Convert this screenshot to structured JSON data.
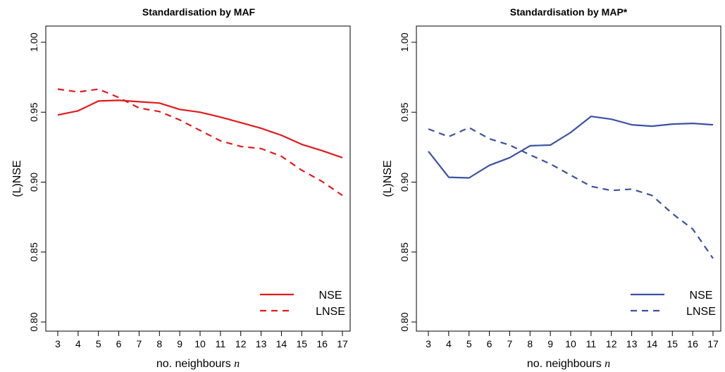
{
  "chart_data": [
    {
      "type": "line",
      "title": "Standardisation by MAF",
      "xlabel": "no. neighbours",
      "xlabel_var": "n",
      "ylabel": "(L)NSE",
      "x": [
        3,
        4,
        5,
        6,
        7,
        8,
        9,
        10,
        11,
        12,
        13,
        14,
        15,
        16,
        17
      ],
      "xlim": [
        3,
        17
      ],
      "ylim": [
        0.8,
        1.0
      ],
      "yticks": [
        "0.80",
        "0.85",
        "0.90",
        "0.95",
        "1.00"
      ],
      "grid": false,
      "legend_position": "bottom-right",
      "series": [
        {
          "name": "NSE",
          "style": "solid",
          "color": "#e31a1c",
          "values": [
            0.948,
            0.951,
            0.958,
            0.9585,
            0.9575,
            0.9565,
            0.952,
            0.95,
            0.9465,
            0.9425,
            0.9385,
            0.9335,
            0.927,
            0.9225,
            0.9175
          ]
        },
        {
          "name": "LNSE",
          "style": "dashed",
          "color": "#e31a1c",
          "values": [
            0.9665,
            0.9645,
            0.9665,
            0.9605,
            0.953,
            0.9505,
            0.9445,
            0.937,
            0.9295,
            0.9255,
            0.924,
            0.9185,
            0.9085,
            0.9005,
            0.8905
          ]
        }
      ]
    },
    {
      "type": "line",
      "title": "Standardisation by MAP*",
      "xlabel": "no. neighbours",
      "xlabel_var": "n",
      "ylabel": "(L)NSE",
      "x": [
        3,
        4,
        5,
        6,
        7,
        8,
        9,
        10,
        11,
        12,
        13,
        14,
        15,
        16,
        17
      ],
      "xlim": [
        3,
        17
      ],
      "ylim": [
        0.8,
        1.0
      ],
      "yticks": [
        "0.80",
        "0.85",
        "0.90",
        "0.95",
        "1.00"
      ],
      "grid": false,
      "legend_position": "bottom-right",
      "series": [
        {
          "name": "NSE",
          "style": "solid",
          "color": "#3a52a3",
          "values": [
            0.922,
            0.9035,
            0.903,
            0.912,
            0.9175,
            0.926,
            0.9265,
            0.9355,
            0.947,
            0.945,
            0.941,
            0.94,
            0.9415,
            0.942,
            0.941
          ]
        },
        {
          "name": "LNSE",
          "style": "dashed",
          "color": "#3a52a3",
          "values": [
            0.938,
            0.9325,
            0.939,
            0.931,
            0.9265,
            0.9195,
            0.913,
            0.905,
            0.897,
            0.894,
            0.895,
            0.8905,
            0.8775,
            0.8665,
            0.8455
          ]
        }
      ]
    }
  ]
}
